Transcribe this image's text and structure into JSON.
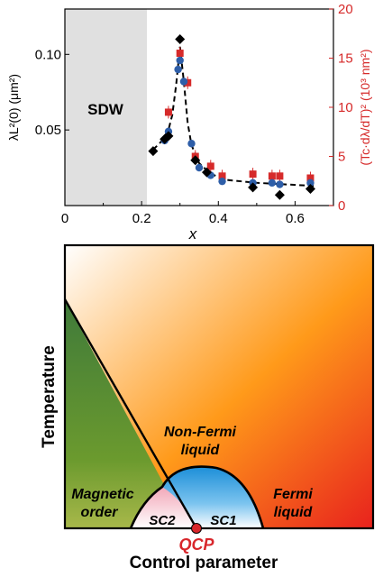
{
  "chart_data": [
    {
      "type": "scatter",
      "xlabel": "x",
      "ylabel": "λL²(0) (μm²)",
      "ylabel_right": "(Tc·dλ/dT)² (10³ nm²)",
      "xlim": [
        0,
        0.7
      ],
      "ylim": [
        0,
        0.13
      ],
      "ylim_right": [
        0,
        20
      ],
      "x_ticks": [
        "0",
        "0.2",
        "0.4",
        "0.6"
      ],
      "x_tick_values": [
        0,
        0.2,
        0.4,
        0.6
      ],
      "y_ticks": [
        "0.05",
        "0.10"
      ],
      "y_tick_values": [
        0.05,
        0.1
      ],
      "y_ticks_right": [
        "0",
        "5",
        "10",
        "15",
        "20"
      ],
      "y_tick_values_right": [
        0,
        5,
        10,
        15,
        20
      ],
      "grid": false,
      "shaded_region": {
        "label": "SDW",
        "x_from": 0,
        "x_to": 0.215,
        "color": "#e0e0e0"
      },
      "series": [
        {
          "marker": "diamond",
          "color": "#000000",
          "axis": "left",
          "points": [
            [
              0.23,
              0.036
            ],
            [
              0.26,
              0.044
            ],
            [
              0.27,
              0.046
            ],
            [
              0.3,
              0.11
            ],
            [
              0.34,
              0.03
            ],
            [
              0.37,
              0.022
            ],
            [
              0.49,
              0.012
            ],
            [
              0.56,
              0.007
            ],
            [
              0.64,
              0.011
            ]
          ]
        },
        {
          "marker": "circle",
          "color": "#2e5ea8",
          "axis": "left",
          "points": [
            [
              0.26,
              0.043
            ],
            [
              0.27,
              0.049
            ],
            [
              0.295,
              0.09
            ],
            [
              0.3,
              0.096
            ],
            [
              0.31,
              0.082
            ],
            [
              0.33,
              0.041
            ],
            [
              0.35,
              0.025
            ],
            [
              0.38,
              0.02
            ],
            [
              0.41,
              0.016
            ],
            [
              0.49,
              0.015
            ],
            [
              0.54,
              0.015
            ],
            [
              0.56,
              0.014
            ],
            [
              0.64,
              0.015
            ]
          ]
        },
        {
          "marker": "square",
          "color": "#d62a2a",
          "axis": "right",
          "error_bars": true,
          "points": [
            [
              0.27,
              9.5
            ],
            [
              0.3,
              15.5
            ],
            [
              0.32,
              12.5
            ],
            [
              0.34,
              5.0
            ],
            [
              0.38,
              4.0
            ],
            [
              0.41,
              3.0
            ],
            [
              0.49,
              3.2
            ],
            [
              0.54,
              3.0
            ],
            [
              0.56,
              3.0
            ],
            [
              0.64,
              2.8
            ]
          ]
        },
        {
          "type": "line",
          "style": "dashed",
          "color": "#000000",
          "axis": "left",
          "points": [
            [
              0.23,
              0.037
            ],
            [
              0.25,
              0.042
            ],
            [
              0.27,
              0.05
            ],
            [
              0.28,
              0.06
            ],
            [
              0.29,
              0.08
            ],
            [
              0.3,
              0.105
            ],
            [
              0.31,
              0.082
            ],
            [
              0.32,
              0.055
            ],
            [
              0.33,
              0.04
            ],
            [
              0.35,
              0.028
            ],
            [
              0.38,
              0.021
            ],
            [
              0.42,
              0.017
            ],
            [
              0.5,
              0.015
            ],
            [
              0.65,
              0.013
            ]
          ]
        }
      ]
    },
    {
      "type": "phase-diagram",
      "xlabel": "Control parameter",
      "ylabel": "Temperature",
      "regions": [
        {
          "label": "Magnetic order",
          "color": "#4f8c34"
        },
        {
          "label": "Non-Fermi liquid",
          "color": "#ff9a1a"
        },
        {
          "label": "Fermi liquid",
          "color": "#ee4a1e"
        },
        {
          "label": "SC1",
          "color": "#3b9edb"
        },
        {
          "label": "SC2",
          "color": "#f2b6c2"
        }
      ],
      "critical_point": {
        "label": "QCP",
        "color": "#d8262b"
      }
    }
  ],
  "top": {
    "xlabel": "x",
    "ylabel_left": "λL²(0) (μm²)",
    "ylabel_right": "(Tc·dλ/dT)² (10³ nm²)",
    "x_ticks": [
      "0",
      "0.2",
      "0.4",
      "0.6"
    ],
    "y_ticks_left": [
      "0.05",
      "0.10"
    ],
    "y_ticks_right": [
      "0",
      "5",
      "10",
      "15",
      "20"
    ],
    "region_label": "SDW"
  },
  "bottom": {
    "xlabel": "Control parameter",
    "ylabel": "Temperature",
    "label_nfl_1": "Non-Fermi",
    "label_nfl_2": "liquid",
    "label_mag_1": "Magnetic",
    "label_mag_2": "order",
    "label_fl_1": "Fermi",
    "label_fl_2": "liquid",
    "label_sc1": "SC1",
    "label_sc2": "SC2",
    "label_qcp": "QCP"
  },
  "colors": {
    "left_axis": "#000000",
    "right_axis": "#d62a2a",
    "diamond": "#000000",
    "circle": "#2e5ea8",
    "square": "#d62a2a",
    "qcp": "#d8262b"
  }
}
